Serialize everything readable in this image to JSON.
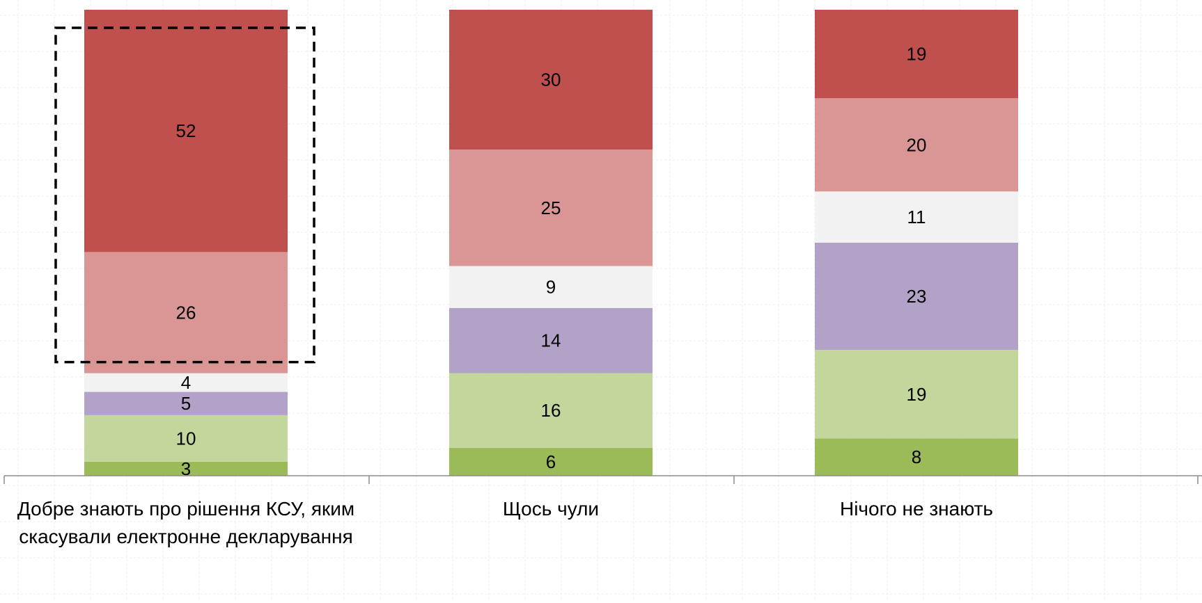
{
  "chart_data": {
    "type": "bar",
    "stacked": true,
    "categories": [
      "Добре знають про рішення КСУ, яким скасували електронне декларування",
      "Щось чули",
      "Нічого не знають"
    ],
    "category_lines": [
      [
        "Добре знають про рішення КСУ, яким",
        "скасували електронне декларування"
      ],
      [
        "Щось чули"
      ],
      [
        "Нічого не знають"
      ]
    ],
    "series": [
      {
        "values": [
          3,
          6,
          8
        ],
        "color": "#9bbb59"
      },
      {
        "values": [
          10,
          16,
          19
        ],
        "color": "#c3d69b"
      },
      {
        "values": [
          5,
          14,
          23
        ],
        "color": "#b2a2c7"
      },
      {
        "values": [
          4,
          9,
          11
        ],
        "color": "#f2f2f2"
      },
      {
        "values": [
          26,
          25,
          20
        ],
        "color": "#d99694"
      },
      {
        "values": [
          52,
          30,
          19
        ],
        "color": "#c0504d"
      }
    ],
    "ylim": [
      0,
      100
    ],
    "grid": true,
    "legend": "none",
    "highlight": {
      "category_index": 0,
      "series_indices": [
        4,
        5
      ],
      "style": "dashed-box"
    }
  }
}
